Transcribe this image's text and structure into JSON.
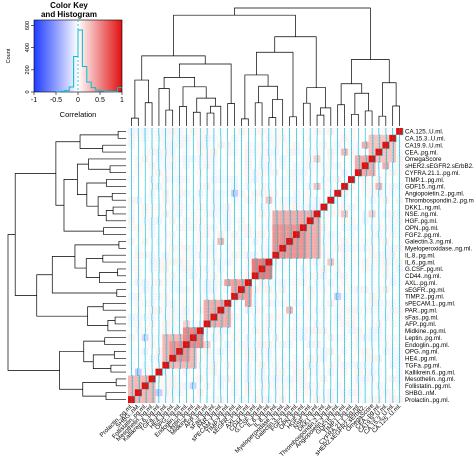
{
  "colors": {
    "low": "#1e3cff",
    "mid": "#ffffff",
    "high": "#e01010",
    "trace": "#00c0d0",
    "histogram": "#00c0d0",
    "dendrogram": "#000000"
  },
  "chart_data": {
    "type": "heatmap",
    "title": "",
    "key": {
      "title_line1": "Color Key",
      "title_line2": "and Histogram",
      "xlabel": "Correlation",
      "ylabel": "Count",
      "xticks": [
        "-1",
        "-0.5",
        "0",
        "0.5",
        "1"
      ],
      "yticks": [
        "0",
        "200",
        "400",
        "600"
      ],
      "xlim": [
        -1,
        1
      ],
      "ylim": [
        0,
        650
      ],
      "histogram": [
        {
          "x": -0.45,
          "count": 2
        },
        {
          "x": -0.35,
          "count": 6
        },
        {
          "x": -0.25,
          "count": 15
        },
        {
          "x": -0.15,
          "count": 45
        },
        {
          "x": -0.05,
          "count": 320
        },
        {
          "x": 0.05,
          "count": 560
        },
        {
          "x": 0.15,
          "count": 230
        },
        {
          "x": 0.25,
          "count": 90
        },
        {
          "x": 0.35,
          "count": 40
        },
        {
          "x": 0.45,
          "count": 18
        },
        {
          "x": 0.55,
          "count": 8
        },
        {
          "x": 0.65,
          "count": 5
        },
        {
          "x": 0.75,
          "count": 3
        },
        {
          "x": 0.85,
          "count": 2
        },
        {
          "x": 0.95,
          "count": 40
        }
      ]
    },
    "row_labels": [
      "CA.125..U.ml.",
      "CA.15.3..U.ml.",
      "CA19.9..U.ml.",
      "CEA..pg.ml.",
      "OmegaScore",
      "sHER2.sEGFR2.sErbB2..",
      "CYFRA.21.1..pg.ml.",
      "TIMP.1..pg.ml.",
      "GDF15..ng.ml.",
      "Angiopoietin.2..pg.ml.",
      "Thrombospondin.2..pg.ml.",
      "DKK1..ng.ml.",
      "NSE..ng.ml.",
      "HGF..pg.ml.",
      "OPN..pg.ml.",
      "FGF2..pg.ml.",
      "Galectin.3..ng.ml.",
      "Myeloperoxidase..ng.ml.",
      "IL.8..pg.ml.",
      "IL.6..pg.ml.",
      "G.CSF..pg.ml.",
      "CD44..ng.ml.",
      "AXL..pg.ml.",
      "sEGFR..pg.ml.",
      "TIMP.2..pg.ml.",
      "sPECAM.1..pg.ml.",
      "PAR..pg.ml.",
      "sFas..pg.ml.",
      "AFP..pg.ml.",
      "Midkine..pg.ml.",
      "Leptin..pg.ml.",
      "Endoglin..pg.ml.",
      "OPG..ng.ml.",
      "HE4..pg.ml.",
      "TGFa..pg.ml.",
      "Kallikrein.6..pg.ml.",
      "Mesothelin..ng.ml.",
      "Follistatin..pg.ml.",
      "SHBG..nM.",
      "Prolactin..pg.ml."
    ],
    "col_labels": [
      "Prolactin..pg.ml.",
      "SHBG..nM.",
      "Follistatin..pg.ml.",
      "Mesothelin..ng.ml.",
      "Kallikrein.6..pg.ml.",
      "TGFa..pg.ml.",
      "HE4..pg.ml.",
      "OPG..ng.ml.",
      "Endoglin..pg.ml.",
      "Leptin..pg.ml.",
      "Midkine..pg.ml.",
      "AFP..pg.ml.",
      "sFas..pg.ml.",
      "PAR..pg.ml.",
      "sPECAM.1..pg.ml.",
      "TIMP.2..pg.ml.",
      "sEGFR..pg.ml.",
      "AXL..pg.ml.",
      "CD44..ng.ml.",
      "G.CSF..pg.ml.",
      "IL.6..pg.ml.",
      "IL.8..pg.ml.",
      "Myeloperoxidase..ng.ml.",
      "Galectin.3..ng.ml.",
      "FGF2..pg.ml.",
      "OPN..pg.ml.",
      "HGF..pg.ml.",
      "NSE..ng.ml.",
      "DKK1..ng.ml.",
      "Thrombospondin.2..pg.ml.",
      "Angiopoietin.2..pg.ml.",
      "GDF15..ng.ml.",
      "TIMP.1..pg.ml.",
      "CYFRA.21.1..pg.ml.",
      "sHER2.sEGFR2.sErbB2..",
      "OmegaScore",
      "CEA..pg.ml.",
      "CA19.9..U.ml.",
      "CA.15.3..U.ml.",
      "CA.125..U.ml."
    ],
    "clusters": [
      {
        "start": 0,
        "end": 3,
        "r": 0.3
      },
      {
        "start": 5,
        "end": 9,
        "r": 0.3
      },
      {
        "start": 6,
        "end": 8,
        "r": 0.45
      },
      {
        "start": 8,
        "end": 10,
        "r": 0.5
      },
      {
        "start": 11,
        "end": 14,
        "r": 0.35
      },
      {
        "start": 15,
        "end": 17,
        "r": 0.4
      },
      {
        "start": 18,
        "end": 20,
        "r": 0.55
      },
      {
        "start": 21,
        "end": 27,
        "r": 0.35
      },
      {
        "start": 21,
        "end": 25,
        "r": 0.45
      },
      {
        "start": 33,
        "end": 35,
        "r": 0.35
      },
      {
        "start": 35,
        "end": 38,
        "r": 0.25
      }
    ],
    "off_diagonal": [
      {
        "row": 2,
        "col": 34,
        "r": 0.35
      },
      {
        "row": 8,
        "col": 36,
        "r": 0.3
      },
      {
        "row": 10,
        "col": 20,
        "r": 0.25
      },
      {
        "row": 16,
        "col": 13,
        "r": 0.3
      },
      {
        "row": 22,
        "col": 14,
        "r": 0.4
      },
      {
        "row": 24,
        "col": 30,
        "r": -0.25
      },
      {
        "row": 30,
        "col": 2,
        "r": -0.2
      },
      {
        "row": 36,
        "col": 3,
        "r": -0.3
      },
      {
        "row": 35,
        "col": 1,
        "r": -0.25
      },
      {
        "row": 28,
        "col": 8,
        "r": 0.2
      },
      {
        "row": 12,
        "col": 31,
        "r": 0.25
      },
      {
        "row": 4,
        "col": 27,
        "r": 0.2
      }
    ],
    "scale": "correlation",
    "diagonal_value": 1
  }
}
